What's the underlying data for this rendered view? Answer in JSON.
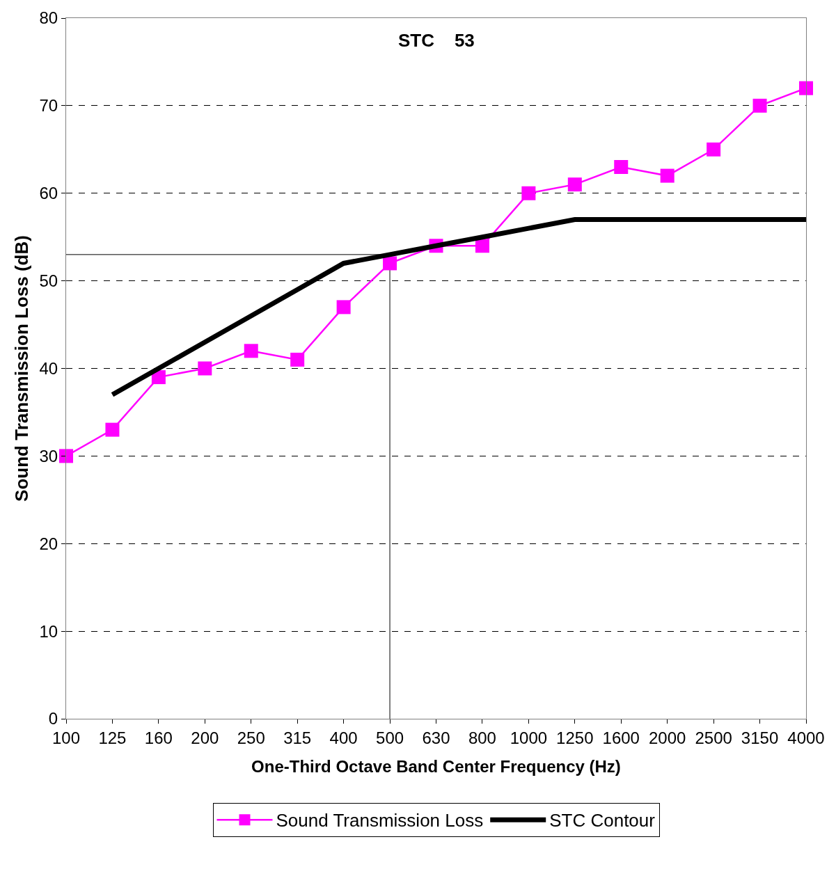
{
  "chart_data": {
    "type": "line",
    "title": "STC    53",
    "xlabel": "One-Third Octave Band Center Frequency (Hz)",
    "ylabel": "Sound Transmission Loss (dB)",
    "categories": [
      "100",
      "125",
      "160",
      "200",
      "250",
      "315",
      "400",
      "500",
      "630",
      "800",
      "1000",
      "1250",
      "1600",
      "2000",
      "2500",
      "3150",
      "4000"
    ],
    "series": [
      {
        "name": "Sound Transmission Loss",
        "color": "#ff00ff",
        "marker": "square",
        "values": [
          30,
          33,
          39,
          40,
          42,
          41,
          47,
          52,
          54,
          54,
          60,
          61,
          63,
          62,
          65,
          70,
          72
        ]
      },
      {
        "name": "STC Contour",
        "color": "#000000",
        "marker": "none",
        "values": [
          null,
          37,
          40,
          43,
          46,
          49,
          52,
          53,
          54,
          55,
          56,
          57,
          57,
          57,
          57,
          57,
          57
        ]
      }
    ],
    "ylim": [
      0,
      80
    ],
    "yticks": [
      0,
      10,
      20,
      30,
      40,
      50,
      60,
      70,
      80
    ],
    "grid": "y",
    "legend": "bottom",
    "ref_lines": [
      {
        "axis": "y",
        "value": 53,
        "color": "#000000"
      },
      {
        "axis": "x",
        "value": "500",
        "color": "#000000"
      }
    ]
  }
}
